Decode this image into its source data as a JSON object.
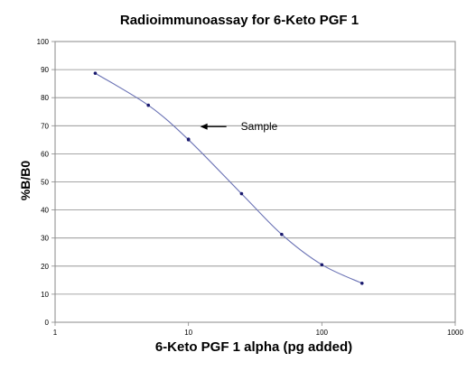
{
  "chart_data": {
    "type": "line",
    "title": "Radioimmunoassay for 6-Keto PGF 1",
    "xlabel": "6-Keto PGF 1 alpha (pg added)",
    "ylabel": "%B/B0",
    "x_scale": "log",
    "xlim": [
      1,
      1000
    ],
    "ylim": [
      0,
      100
    ],
    "x_ticks": [
      "1",
      "10",
      "100",
      "1000"
    ],
    "y_ticks": [
      "0",
      "10",
      "20",
      "30",
      "40",
      "50",
      "60",
      "70",
      "80",
      "90",
      "100"
    ],
    "grid": "horizontal",
    "series": [
      {
        "x": [
          2,
          5,
          10,
          25,
          50,
          100,
          200
        ],
        "y": [
          88.7,
          77.3,
          65.0,
          45.8,
          31.3,
          20.5,
          13.9
        ]
      }
    ],
    "annotations": [
      {
        "text": "Sample",
        "x": 10,
        "y": 65.2,
        "arrow": true
      }
    ],
    "colors": {
      "line": "#6b73b5",
      "marker": "#1a1a6e",
      "grid": "#888888",
      "frame": "#888888"
    }
  }
}
